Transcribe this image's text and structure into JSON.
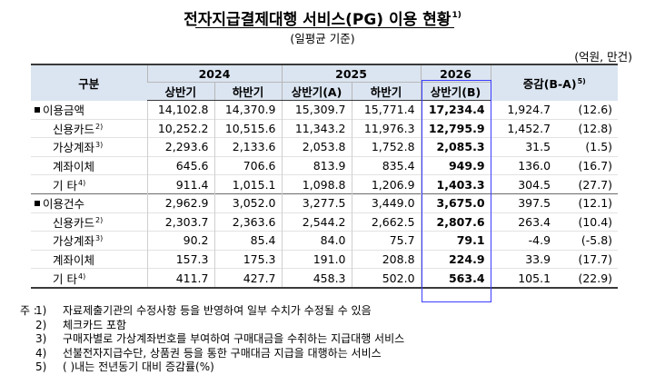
{
  "title": "전자지급결제대행 서비스(PG) 이용 현황",
  "title_sup": "1)",
  "subtitle": "(일평균 기준)",
  "unit": "(억원, 만건)",
  "header": {
    "category": "구분",
    "years": [
      "2024",
      "2025",
      "2026"
    ],
    "change": "증감(B-A)",
    "change_sup": "5)",
    "periods": [
      "상반기",
      "하반기",
      "상반기(A)",
      "하반기",
      "상반기(B)"
    ]
  },
  "rows": [
    {
      "label": "이용금액",
      "marker": "■",
      "sup": "",
      "values": [
        "14,102.8",
        "14,370.9",
        "15,309.7",
        "15,771.4",
        "17,234.4"
      ],
      "change": "1,924.7",
      "pct": "(12.6)"
    },
    {
      "label": "신용카드",
      "marker": "",
      "sup": "2)",
      "values": [
        "10,252.2",
        "10,515.6",
        "11,343.2",
        "11,976.3",
        "12,795.9"
      ],
      "change": "1,452.7",
      "pct": "(12.8)"
    },
    {
      "label": "가상계좌",
      "marker": "",
      "sup": "3)",
      "values": [
        "2,293.6",
        "2,133.6",
        "2,053.8",
        "1,752.8",
        "2,085.3"
      ],
      "change": "31.5",
      "pct": "(1.5)"
    },
    {
      "label": "계좌이체",
      "marker": "",
      "sup": "",
      "values": [
        "645.6",
        "706.6",
        "813.9",
        "835.4",
        "949.9"
      ],
      "change": "136.0",
      "pct": "(16.7)"
    },
    {
      "label": "기 타",
      "marker": "",
      "sup": "4)",
      "values": [
        "911.4",
        "1,015.1",
        "1,098.8",
        "1,206.9",
        "1,403.3"
      ],
      "change": "304.5",
      "pct": "(27.7)"
    },
    {
      "label": "이용건수",
      "marker": "■",
      "sup": "",
      "values": [
        "2,962.9",
        "3,052.0",
        "3,277.5",
        "3,449.0",
        "3,675.0"
      ],
      "change": "397.5",
      "pct": "(12.1)"
    },
    {
      "label": "신용카드",
      "marker": "",
      "sup": "2)",
      "values": [
        "2,303.7",
        "2,363.6",
        "2,544.2",
        "2,662.5",
        "2,807.6"
      ],
      "change": "263.4",
      "pct": "(10.4)"
    },
    {
      "label": "가상계좌",
      "marker": "",
      "sup": "3)",
      "values": [
        "90.2",
        "85.4",
        "84.0",
        "75.7",
        "79.1"
      ],
      "change": "-4.9",
      "pct": "(-5.8)"
    },
    {
      "label": "계좌이체",
      "marker": "",
      "sup": "",
      "values": [
        "157.3",
        "175.3",
        "191.0",
        "208.8",
        "224.9"
      ],
      "change": "33.9",
      "pct": "(17.7)"
    },
    {
      "label": "기 타",
      "marker": "",
      "sup": "4)",
      "values": [
        "411.7",
        "427.7",
        "458.3",
        "502.0",
        "563.4"
      ],
      "change": "105.1",
      "pct": "(22.9)"
    }
  ],
  "notes": {
    "prefix": "주 :",
    "items": [
      {
        "num": "1)",
        "text": "자료제출기관의 수정사항 등을 반영하여 일부 수치가 수정될 수 있음"
      },
      {
        "num": "2)",
        "text": "체크카드 포함"
      },
      {
        "num": "3)",
        "text": "구매자별로 가상계좌번호를 부여하여 구매대금을 수취하는 지급대행 서비스"
      },
      {
        "num": "4)",
        "text": "선불전자지급수단, 상품권 등을 통한 구매대금 지급을 대행하는 서비스"
      },
      {
        "num": "5)",
        "text": "( )내는 전년동기 대비 증감률(%)"
      }
    ]
  }
}
